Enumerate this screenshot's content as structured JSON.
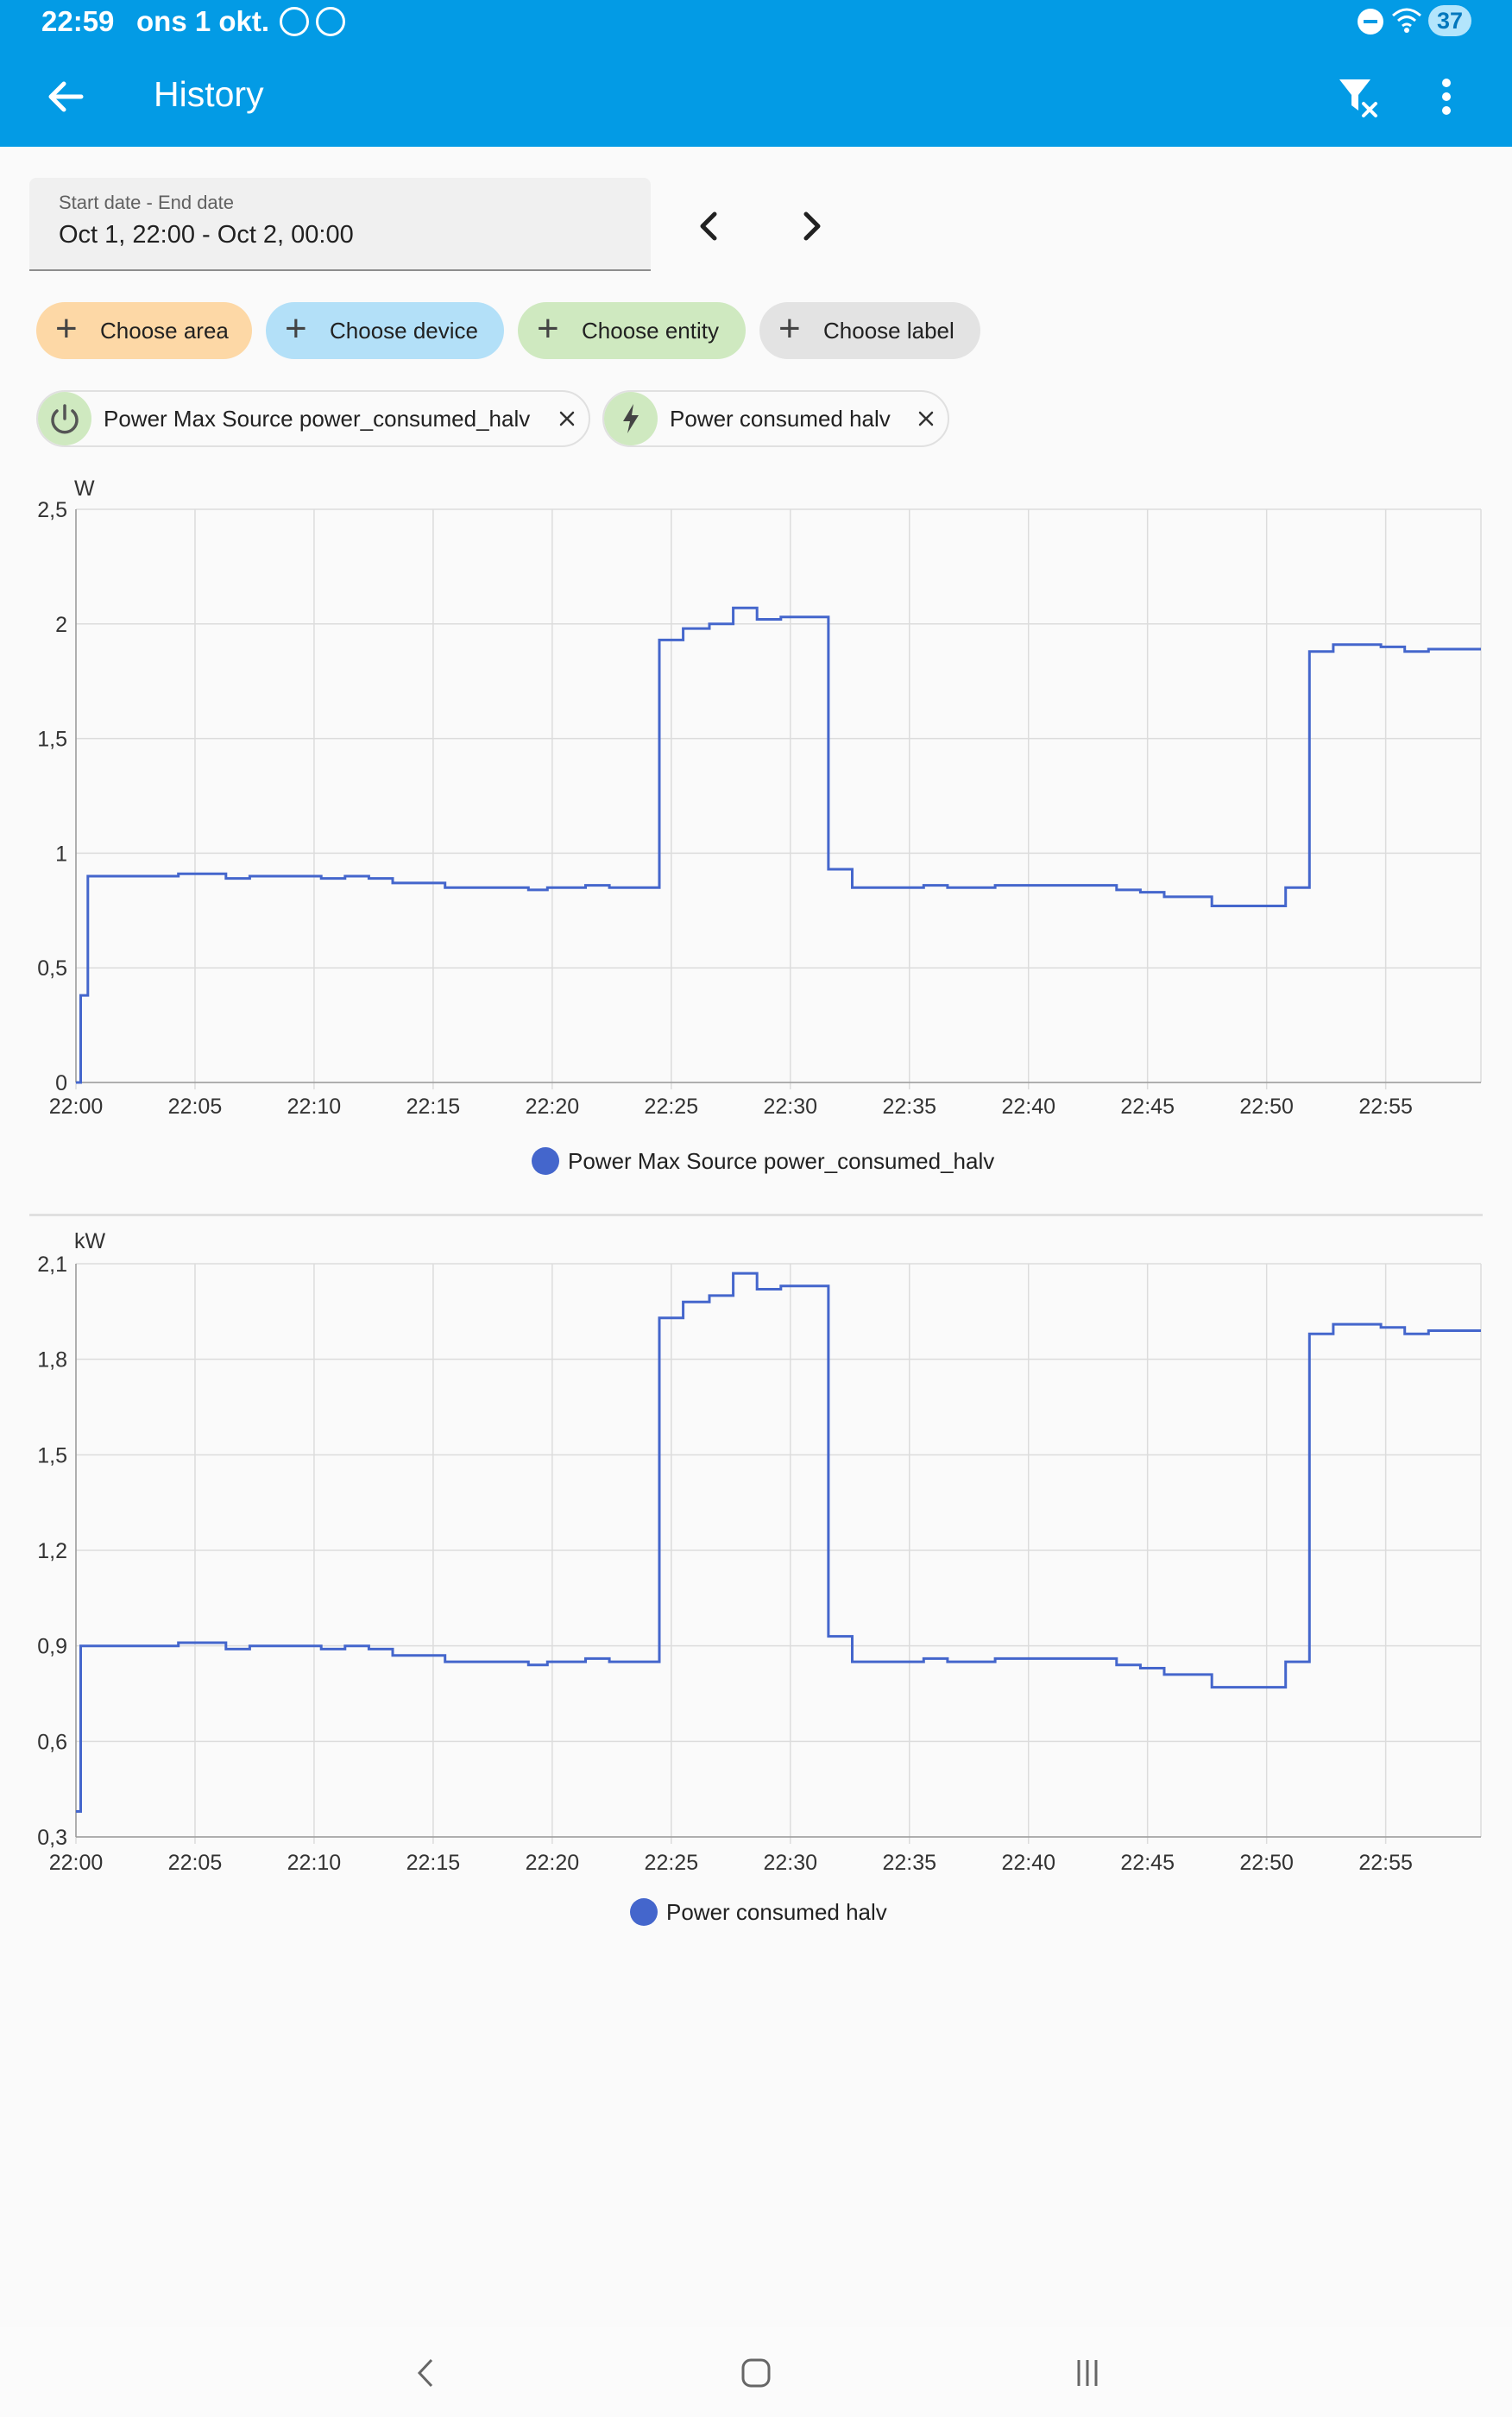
{
  "status_bar": {
    "time": "22:59",
    "date": "ons 1 okt.",
    "battery": "37",
    "icons": [
      "screenshot-icon",
      "hourglass-icon",
      "do-not-disturb-icon",
      "wifi-icon"
    ]
  },
  "appbar": {
    "title": "History",
    "icons": [
      "back-arrow-icon",
      "filter-remove-icon",
      "more-vert-icon"
    ],
    "color": "#039be5"
  },
  "date_range": {
    "label": "Start date - End date",
    "value": "Oct 1, 22:00 - Oct 2, 00:00"
  },
  "target_chips": [
    {
      "label": "Choose area",
      "color": "#fdd8a6"
    },
    {
      "label": "Choose device",
      "color": "#b3e0f8"
    },
    {
      "label": "Choose entity",
      "color": "#cfe9c0"
    },
    {
      "label": "Choose label",
      "color": "#e3e3e3"
    }
  ],
  "selected_entities": [
    {
      "label": "Power Max Source power_consumed_halv",
      "icon": "power-icon"
    },
    {
      "label": "Power consumed halv",
      "icon": "flash-icon"
    }
  ],
  "chart_data": [
    {
      "type": "line",
      "step": true,
      "unit": "W",
      "y_ticks": [
        "2,5",
        "2",
        "1,5",
        "1",
        "0,5",
        "0"
      ],
      "ylim": [
        0,
        2.5
      ],
      "x_ticks": [
        "22:00",
        "22:05",
        "22:10",
        "22:15",
        "22:20",
        "22:25",
        "22:30",
        "22:35",
        "22:40",
        "22:45",
        "22:50",
        "22:55"
      ],
      "xlim": [
        "22:00",
        "22:59"
      ],
      "grid": true,
      "legend_position": "bottom-center",
      "series": [
        {
          "name": "Power Max Source power_consumed_halv",
          "color": "#4466cc",
          "points": [
            [
              "22:00",
              0.0
            ],
            [
              "22:00.2",
              0.38
            ],
            [
              "22:00.5",
              0.9
            ],
            [
              "22:04.3",
              0.91
            ],
            [
              "22:06.3",
              0.89
            ],
            [
              "22:07.3",
              0.9
            ],
            [
              "22:10.3",
              0.89
            ],
            [
              "22:11.3",
              0.9
            ],
            [
              "22:12.3",
              0.89
            ],
            [
              "22:13.3",
              0.87
            ],
            [
              "22:15.5",
              0.85
            ],
            [
              "22:19.0",
              0.84
            ],
            [
              "22:19.8",
              0.85
            ],
            [
              "22:21.4",
              0.86
            ],
            [
              "22:22.4",
              0.85
            ],
            [
              "22:24.5",
              1.93
            ],
            [
              "22:25.5",
              1.98
            ],
            [
              "22:26.6",
              2.0
            ],
            [
              "22:27.6",
              2.07
            ],
            [
              "22:28.6",
              2.02
            ],
            [
              "22:29.6",
              2.03
            ],
            [
              "22:31.6",
              0.93
            ],
            [
              "22:32.6",
              0.85
            ],
            [
              "22:35.6",
              0.86
            ],
            [
              "22:36.6",
              0.85
            ],
            [
              "22:38.6",
              0.86
            ],
            [
              "22:43.7",
              0.84
            ],
            [
              "22:44.7",
              0.83
            ],
            [
              "22:45.7",
              0.81
            ],
            [
              "22:47.7",
              0.77
            ],
            [
              "22:50.8",
              0.85
            ],
            [
              "22:51.8",
              1.88
            ],
            [
              "22:52.8",
              1.91
            ],
            [
              "22:54.8",
              1.9
            ],
            [
              "22:55.8",
              1.88
            ],
            [
              "22:56.8",
              1.89
            ],
            [
              "22:59",
              1.89
            ]
          ]
        }
      ]
    },
    {
      "type": "line",
      "step": true,
      "unit": "kW",
      "y_ticks": [
        "2,1",
        "1,8",
        "1,5",
        "1,2",
        "0,9",
        "0,6",
        "0,3"
      ],
      "ylim": [
        0.3,
        2.1
      ],
      "x_ticks": [
        "22:00",
        "22:05",
        "22:10",
        "22:15",
        "22:20",
        "22:25",
        "22:30",
        "22:35",
        "22:40",
        "22:45",
        "22:50",
        "22:55"
      ],
      "xlim": [
        "22:00",
        "22:59"
      ],
      "grid": true,
      "legend_position": "bottom-center",
      "series": [
        {
          "name": "Power consumed halv",
          "color": "#4466cc",
          "points": [
            [
              "22:00",
              0.38
            ],
            [
              "22:00.2",
              0.9
            ],
            [
              "22:04.3",
              0.91
            ],
            [
              "22:06.3",
              0.89
            ],
            [
              "22:07.3",
              0.9
            ],
            [
              "22:10.3",
              0.89
            ],
            [
              "22:11.3",
              0.9
            ],
            [
              "22:12.3",
              0.89
            ],
            [
              "22:13.3",
              0.87
            ],
            [
              "22:15.5",
              0.85
            ],
            [
              "22:19.0",
              0.84
            ],
            [
              "22:19.8",
              0.85
            ],
            [
              "22:21.4",
              0.86
            ],
            [
              "22:22.4",
              0.85
            ],
            [
              "22:24.5",
              1.93
            ],
            [
              "22:25.5",
              1.98
            ],
            [
              "22:26.6",
              2.0
            ],
            [
              "22:27.6",
              2.07
            ],
            [
              "22:28.6",
              2.02
            ],
            [
              "22:29.6",
              2.03
            ],
            [
              "22:31.6",
              0.93
            ],
            [
              "22:32.6",
              0.85
            ],
            [
              "22:35.6",
              0.86
            ],
            [
              "22:36.6",
              0.85
            ],
            [
              "22:38.6",
              0.86
            ],
            [
              "22:43.7",
              0.84
            ],
            [
              "22:44.7",
              0.83
            ],
            [
              "22:45.7",
              0.81
            ],
            [
              "22:47.7",
              0.77
            ],
            [
              "22:50.8",
              0.85
            ],
            [
              "22:51.8",
              1.88
            ],
            [
              "22:52.8",
              1.91
            ],
            [
              "22:54.8",
              1.9
            ],
            [
              "22:55.8",
              1.88
            ],
            [
              "22:56.8",
              1.89
            ],
            [
              "22:59",
              1.89
            ]
          ]
        }
      ]
    }
  ],
  "system_nav": [
    "back-icon",
    "home-icon",
    "recents-icon"
  ]
}
